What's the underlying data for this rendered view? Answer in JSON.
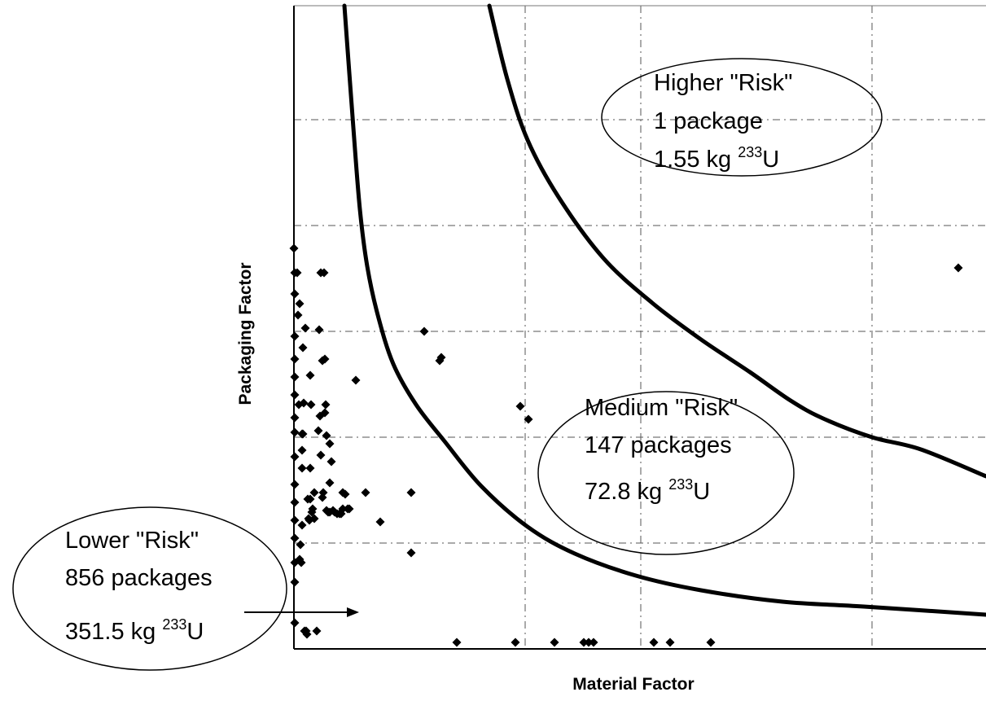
{
  "chart_data": {
    "type": "scatter",
    "title": "",
    "xlabel": "Material Factor",
    "ylabel": "Packaging Factor",
    "xlim": [
      0,
      850
    ],
    "ylim": [
      0,
      790
    ],
    "grid": true,
    "x_gridlines": [
      284,
      426,
      710
    ],
    "y_gridlines": [
      130,
      260,
      390,
      520,
      650
    ],
    "points": [
      [
        0,
        492
      ],
      [
        1,
        462
      ],
      [
        1,
        436
      ],
      [
        1,
        384
      ],
      [
        1,
        356
      ],
      [
        1,
        334
      ],
      [
        1,
        312
      ],
      [
        1,
        284
      ],
      [
        1,
        266
      ],
      [
        1,
        236
      ],
      [
        1,
        202
      ],
      [
        1,
        180
      ],
      [
        1,
        158
      ],
      [
        1,
        136
      ],
      [
        1,
        106
      ],
      [
        1,
        82
      ],
      [
        1,
        32
      ],
      [
        4,
        462
      ],
      [
        5,
        410
      ],
      [
        6,
        300
      ],
      [
        7,
        424
      ],
      [
        7,
        110
      ],
      [
        8,
        128
      ],
      [
        9,
        106
      ],
      [
        10,
        152
      ],
      [
        10,
        222
      ],
      [
        10,
        244
      ],
      [
        10,
        264
      ],
      [
        11,
        264
      ],
      [
        11,
        370
      ],
      [
        12,
        302
      ],
      [
        13,
        22
      ],
      [
        14,
        394
      ],
      [
        15,
        22
      ],
      [
        16,
        18
      ],
      [
        17,
        184
      ],
      [
        18,
        160
      ],
      [
        19,
        158
      ],
      [
        20,
        336
      ],
      [
        20,
        222
      ],
      [
        20,
        184
      ],
      [
        21,
        300
      ],
      [
        22,
        168
      ],
      [
        23,
        172
      ],
      [
        25,
        192
      ],
      [
        25,
        160
      ],
      [
        28,
        22
      ],
      [
        30,
        268
      ],
      [
        31,
        392
      ],
      [
        32,
        286
      ],
      [
        33,
        238
      ],
      [
        33,
        462
      ],
      [
        35,
        354
      ],
      [
        35,
        186
      ],
      [
        36,
        192
      ],
      [
        37,
        462
      ],
      [
        38,
        290
      ],
      [
        38,
        356
      ],
      [
        39,
        300
      ],
      [
        40,
        262
      ],
      [
        40,
        170
      ],
      [
        42,
        168
      ],
      [
        44,
        204
      ],
      [
        44,
        168
      ],
      [
        44,
        252
      ],
      [
        46,
        230
      ],
      [
        48,
        170
      ],
      [
        50,
        168
      ],
      [
        53,
        166
      ],
      [
        56,
        166
      ],
      [
        58,
        166
      ],
      [
        60,
        172
      ],
      [
        60,
        192
      ],
      [
        63,
        190
      ],
      [
        66,
        172
      ],
      [
        68,
        172
      ],
      [
        76,
        330
      ],
      [
        88,
        192
      ],
      [
        106,
        156
      ],
      [
        144,
        192
      ],
      [
        144,
        118
      ],
      [
        160,
        390
      ],
      [
        179,
        354
      ],
      [
        181,
        358
      ],
      [
        200,
        8
      ],
      [
        272,
        8
      ],
      [
        278,
        298
      ],
      [
        288,
        282
      ],
      [
        320,
        8
      ],
      [
        356,
        8
      ],
      [
        362,
        8
      ],
      [
        368,
        8
      ],
      [
        442,
        8
      ],
      [
        462,
        8
      ],
      [
        512,
        8
      ],
      [
        816,
        468
      ]
    ],
    "curves": [
      {
        "points": [
          [
            62,
            790
          ],
          [
            73,
            640
          ],
          [
            81,
            540
          ],
          [
            90,
            470
          ],
          [
            103,
            410
          ],
          [
            122,
            350
          ],
          [
            150,
            300
          ],
          [
            185,
            255
          ],
          [
            230,
            200
          ],
          [
            287,
            150
          ],
          [
            345,
            117
          ],
          [
            420,
            90
          ],
          [
            500,
            72
          ],
          [
            600,
            58
          ],
          [
            700,
            52
          ],
          [
            850,
            42
          ]
        ]
      },
      {
        "points": [
          [
            240,
            790
          ],
          [
            262,
            700
          ],
          [
            287,
            625
          ],
          [
            325,
            555
          ],
          [
            380,
            480
          ],
          [
            440,
            425
          ],
          [
            500,
            380
          ],
          [
            560,
            340
          ],
          [
            610,
            305
          ],
          [
            650,
            283
          ],
          [
            710,
            260
          ],
          [
            770,
            245
          ],
          [
            850,
            212
          ]
        ]
      }
    ],
    "annotations": [
      {
        "name": "higher-risk",
        "lines": [
          {
            "text": "Higher \"Risk\""
          },
          {
            "text": "1 package"
          },
          {
            "text": "1.55 kg ",
            "sup": "233",
            "post": "U"
          }
        ]
      },
      {
        "name": "medium-risk",
        "lines": [
          {
            "text": "Medium \"Risk\""
          },
          {
            "text": "147 packages"
          },
          {
            "text": "72.8 kg ",
            "sup": "233",
            "post": "U"
          }
        ]
      },
      {
        "name": "lower-risk",
        "lines": [
          {
            "text": "Lower \"Risk\""
          },
          {
            "text": "856 packages"
          },
          {
            "text": "351.5 kg ",
            "sup": "233",
            "post": "U"
          }
        ]
      }
    ],
    "colors": {
      "curve": "#000000",
      "point": "#000000",
      "grid": "#555555",
      "axis": "#000000"
    }
  }
}
